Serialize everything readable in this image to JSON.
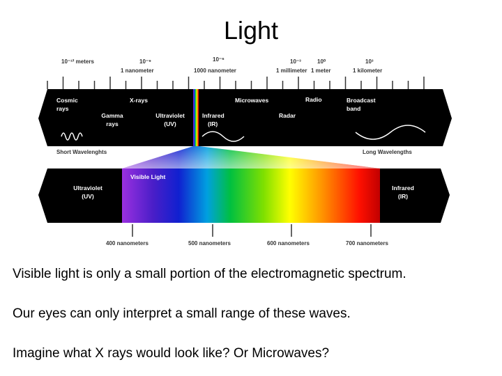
{
  "title": "Light",
  "diagram": {
    "scale_top": [
      "10⁻¹² meters",
      "10⁻⁹",
      "1 nanometer",
      "10⁻⁶",
      "1000 nanometer",
      "10⁻³",
      "1 millimeter",
      "10⁰",
      "1 meter",
      "10³",
      "1 kilometer"
    ],
    "band_labels": [
      [
        "Cosmic",
        "rays"
      ],
      [
        "X-rays"
      ],
      [
        "Gamma",
        "rays"
      ],
      [
        "Ultraviolet",
        "(UV)"
      ],
      [
        "Infrared",
        "(IR)"
      ],
      [
        "Microwaves"
      ],
      [
        "Radio"
      ],
      [
        "Radar"
      ],
      [
        "Broadcast",
        "band"
      ]
    ],
    "short_label": "Short Wavelenghts",
    "long_label": "Long Wavelengths",
    "visible_label": "Visible Light",
    "lower_labels": [
      [
        "Ultraviolet",
        "(UV)"
      ],
      [
        "Infrared",
        "(IR)"
      ]
    ],
    "nm_labels": [
      "400 nanometers",
      "500 nanometers",
      "600 nanometers",
      "700 nanometers"
    ]
  },
  "body": [
    "Visible light is only a small portion of the electromagnetic spectrum.",
    "Our eyes can only interpret a small range of these waves.",
    "Imagine what X rays would look like? Or Microwaves?"
  ]
}
